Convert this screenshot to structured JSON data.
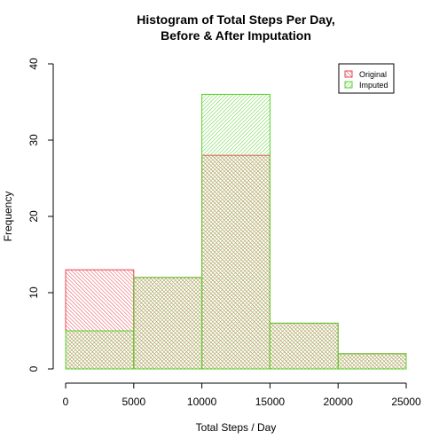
{
  "chart_data": {
    "type": "bar",
    "title_lines": [
      "Histogram of Total Steps Per Day,",
      "Before & After Imputation"
    ],
    "xlabel": "Total Steps / Day",
    "ylabel": "Frequency",
    "bins": [
      {
        "from": 0,
        "to": 5000
      },
      {
        "from": 5000,
        "to": 10000
      },
      {
        "from": 10000,
        "to": 15000
      },
      {
        "from": 15000,
        "to": 20000
      },
      {
        "from": 20000,
        "to": 25000
      }
    ],
    "series": [
      {
        "name": "Original",
        "color": "#e8474f",
        "values": [
          13,
          12,
          28,
          6,
          2
        ]
      },
      {
        "name": "Imputed",
        "color": "#5bd12e",
        "values": [
          5,
          12,
          36,
          6,
          2
        ]
      }
    ],
    "xlim": [
      0,
      25000
    ],
    "ylim": [
      0,
      40
    ],
    "xticks": [
      "0",
      "5000",
      "10000",
      "15000",
      "20000",
      "25000"
    ],
    "yticks": [
      "0",
      "10",
      "20",
      "30",
      "40"
    ],
    "legend_position": "top-right",
    "grid": false
  }
}
